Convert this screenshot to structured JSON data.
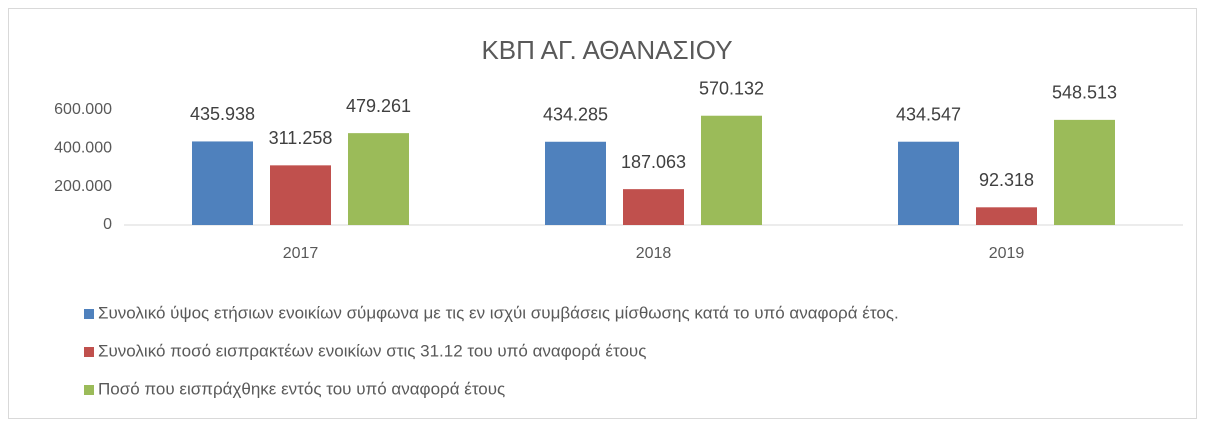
{
  "chart_data": {
    "type": "bar",
    "title": "ΚΒΠ ΑΓ. ΑΘΑΝΑΣΙΟΥ",
    "categories": [
      "2017",
      "2018",
      "2019"
    ],
    "series": [
      {
        "name": "Συνολικό ύψος ετήσιων ενοικίων σύμφωνα με τις εν ισχύι συμβάσεις μίσθωσης κατά το υπό αναφορά έτος.",
        "color": "#4f81bd",
        "values": [
          435938,
          434285,
          434547
        ],
        "value_labels": [
          "435.938",
          "434.285",
          "434.547"
        ]
      },
      {
        "name": "Συνολικό ποσό εισπρακτέων ενοικίων στις 31.12 του υπό αναφορά έτους",
        "color": "#c0504d",
        "values": [
          311258,
          187063,
          92318
        ],
        "value_labels": [
          "311.258",
          "187.063",
          "92.318"
        ]
      },
      {
        "name": "Ποσό που εισπράχθηκε εντός του υπό αναφορά έτους",
        "color": "#9bbb59",
        "values": [
          479261,
          570132,
          548513
        ],
        "value_labels": [
          "479.261",
          "570.132",
          "548.513"
        ]
      }
    ],
    "ylim": [
      0,
      600000
    ],
    "yticks": [
      0,
      {
        "value": 200000,
        "label": "200.000"
      },
      {
        "value": 400000,
        "label": "400.000"
      },
      {
        "value": 600000,
        "label": "600.000"
      }
    ],
    "grid": false,
    "legend": "bottom"
  }
}
